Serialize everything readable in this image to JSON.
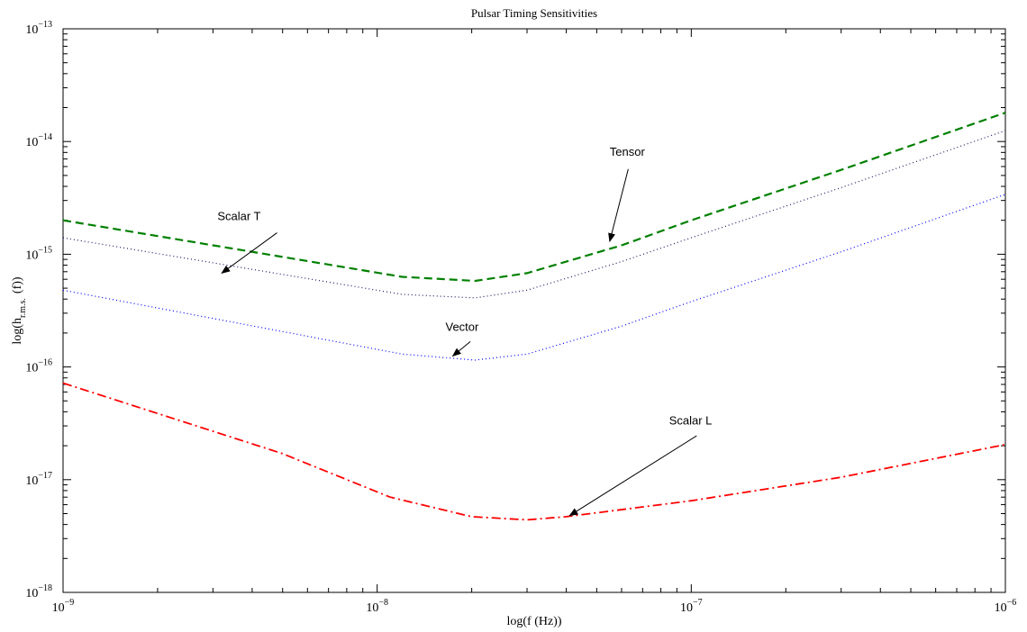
{
  "chart_data": {
    "type": "line",
    "title": "Pulsar Timing Sensitivities",
    "xlabel": "log(f (Hz))",
    "ylabel": {
      "main": "log(h",
      "sub": "r.m.s.",
      "tail": "(f))"
    },
    "xscale": "log",
    "yscale": "log",
    "xlim": [
      1e-09,
      1e-06
    ],
    "ylim": [
      1e-18,
      1e-13
    ],
    "grid": false,
    "legend": "none",
    "x_ticks": [
      {
        "value": 1e-09,
        "base": "10",
        "exp": "−9"
      },
      {
        "value": 1e-08,
        "base": "10",
        "exp": "−8"
      },
      {
        "value": 1e-07,
        "base": "10",
        "exp": "−7"
      },
      {
        "value": 1e-06,
        "base": "10",
        "exp": "−6"
      }
    ],
    "y_ticks": [
      {
        "value": 1e-18,
        "base": "10",
        "exp": "−18"
      },
      {
        "value": 1e-17,
        "base": "10",
        "exp": "−17"
      },
      {
        "value": 1e-16,
        "base": "10",
        "exp": "−16"
      },
      {
        "value": 1e-15,
        "base": "10",
        "exp": "−15"
      },
      {
        "value": 1e-14,
        "base": "10",
        "exp": "−14"
      },
      {
        "value": 1e-13,
        "base": "10",
        "exp": "−13"
      }
    ],
    "series": [
      {
        "id": "tensor",
        "color": "#008000",
        "dash": "9,5",
        "width": 2.2,
        "x": [
          1e-09,
          1.2e-08,
          2.05e-08,
          3e-08,
          6e-08,
          1e-07,
          3e-07,
          1e-06
        ],
        "y": [
          2e-15,
          6.3e-16,
          5.8e-16,
          6.8e-16,
          1.2e-15,
          2e-15,
          5.6e-15,
          1.8e-14
        ]
      },
      {
        "id": "scalar-t",
        "color": "#1a1a66",
        "dash": "1,3",
        "width": 1.2,
        "x": [
          1e-09,
          1.2e-08,
          2.05e-08,
          3e-08,
          6e-08,
          1e-07,
          3e-07,
          1e-06
        ],
        "y": [
          1.4e-15,
          4.4e-16,
          4.1e-16,
          4.8e-16,
          8.6e-16,
          1.4e-15,
          3.9e-15,
          1.25e-14
        ]
      },
      {
        "id": "vector",
        "color": "#0000ff",
        "dash": "1,3",
        "width": 1.2,
        "x": [
          1e-09,
          1.2e-08,
          2.05e-08,
          3e-08,
          6e-08,
          1e-07,
          3e-07,
          1e-06
        ],
        "y": [
          4.8e-16,
          1.3e-16,
          1.15e-16,
          1.3e-16,
          2.3e-16,
          3.8e-16,
          1.05e-15,
          3.4e-15
        ]
      },
      {
        "id": "scalar-l",
        "color": "#ff0000",
        "dash": "10,4,2,4",
        "width": 1.8,
        "x": [
          1e-09,
          5e-09,
          1.1e-08,
          2e-08,
          3e-08,
          4e-08,
          1e-07,
          3e-07,
          1e-06
        ],
        "y": [
          7.2e-17,
          1.7e-17,
          7e-18,
          4.7e-18,
          4.4e-18,
          4.7e-18,
          6.5e-18,
          1.05e-17,
          2.05e-17
        ]
      }
    ],
    "annotations": [
      {
        "id": "annot-tensor",
        "text": "Tensor",
        "text_x": 5.5e-08,
        "text_y": 7.5e-15,
        "arrow_from": [
          6.3e-08,
          5.7e-15
        ],
        "arrow_to": [
          5.5e-08,
          1.3e-15
        ]
      },
      {
        "id": "annot-scalar-t",
        "text": "Scalar T",
        "text_x": 3.1e-09,
        "text_y": 2e-15,
        "arrow_from": [
          4.8e-09,
          1.55e-15
        ],
        "arrow_to": [
          3.2e-09,
          6.8e-16
        ]
      },
      {
        "id": "annot-vector",
        "text": "Vector",
        "text_x": 1.65e-08,
        "text_y": 2.1e-16,
        "arrow_from": [
          1.98e-08,
          1.68e-16
        ],
        "arrow_to": [
          1.74e-08,
          1.25e-16
        ]
      },
      {
        "id": "annot-scalar-l",
        "text": "Scalar L",
        "text_x": 8.5e-08,
        "text_y": 3.1e-17,
        "arrow_from": [
          1.04e-07,
          2.45e-17
        ],
        "arrow_to": [
          4.1e-08,
          4.8e-18
        ]
      }
    ]
  }
}
